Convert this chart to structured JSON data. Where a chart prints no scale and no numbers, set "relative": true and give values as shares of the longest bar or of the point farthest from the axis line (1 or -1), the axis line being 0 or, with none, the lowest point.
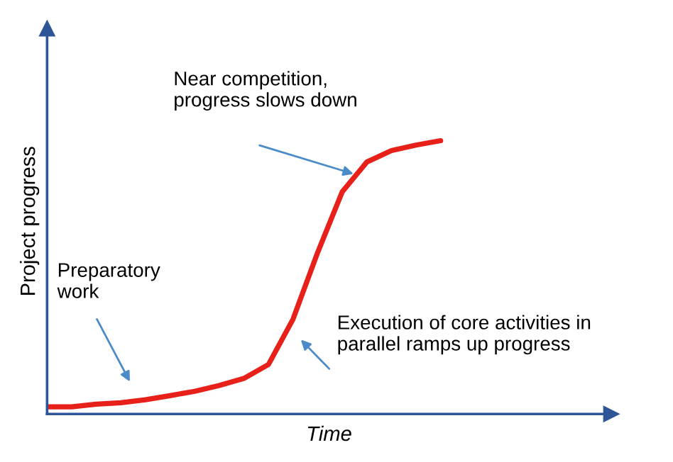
{
  "chart_data": {
    "type": "line",
    "relative": true,
    "xlabel": "Time",
    "ylabel": "Project progress",
    "legend": false,
    "marker": "none",
    "line_style": "solid",
    "categories": [
      null,
      null,
      null,
      null,
      null,
      null,
      null,
      null,
      null,
      null,
      null,
      null,
      null,
      null,
      null,
      null,
      null
    ],
    "series": [
      {
        "color": "#e8201a",
        "values": [
          0.026,
          0.026,
          0.036,
          0.041,
          0.052,
          0.067,
          0.083,
          0.104,
          0.13,
          0.181,
          0.347,
          0.591,
          0.813,
          0.922,
          0.964,
          0.984,
          1
        ]
      }
    ],
    "annotations": [
      "Near competition,\nprogress slows down",
      "Preparatory\nwork",
      "Execution of core activities in\nparallel ramps up progress"
    ]
  }
}
